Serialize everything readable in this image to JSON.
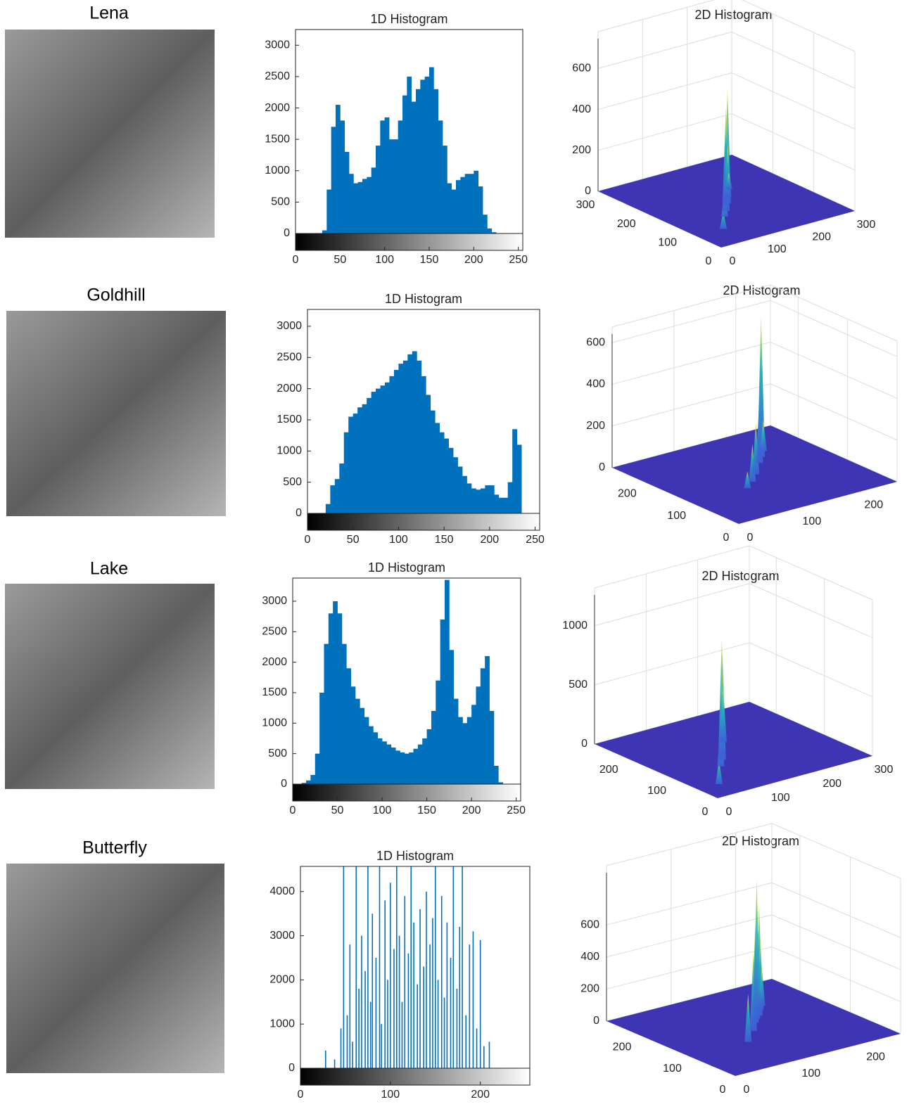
{
  "panels": [
    {
      "label": "Lena"
    },
    {
      "label": "Goldhill"
    },
    {
      "label": "Lake"
    },
    {
      "label": "Butterfly"
    }
  ],
  "chart_data": [
    {
      "type": "histogram",
      "title": "1D Histogram",
      "color": "#0072bd",
      "bins": [
        0,
        5,
        10,
        15,
        20,
        25,
        30,
        35,
        40,
        45,
        50,
        55,
        60,
        65,
        70,
        75,
        80,
        85,
        90,
        95,
        100,
        105,
        110,
        115,
        120,
        125,
        130,
        135,
        140,
        145,
        150,
        155,
        160,
        165,
        170,
        175,
        180,
        185,
        190,
        195,
        200,
        205,
        210,
        215,
        220,
        225,
        230,
        235,
        240,
        245,
        250,
        255
      ],
      "counts": [
        0,
        0,
        0,
        0,
        0,
        0,
        50,
        700,
        1700,
        2050,
        1800,
        1300,
        950,
        800,
        820,
        870,
        900,
        1050,
        1400,
        1800,
        1850,
        1500,
        1500,
        1800,
        2200,
        2500,
        2100,
        2300,
        2450,
        2500,
        2650,
        2300,
        1800,
        1400,
        800,
        700,
        850,
        900,
        950,
        950,
        1000,
        750,
        300,
        80,
        20,
        0,
        0,
        0,
        0,
        0,
        0
      ],
      "xlim": [
        0,
        255
      ],
      "xticks": [
        0,
        50,
        100,
        150,
        200,
        250
      ],
      "ylim": [
        0,
        3250
      ],
      "yticks": [
        0,
        500,
        1000,
        1500,
        2000,
        2500,
        3000
      ]
    },
    {
      "type": "surface3d",
      "title": "2D Histogram",
      "floor_color": "#3d35b4",
      "xlim": [
        0,
        300
      ],
      "xticks": [
        0,
        100,
        200,
        300
      ],
      "ylim": [
        0,
        300
      ],
      "yticks": [
        0,
        100,
        200,
        300
      ],
      "zlim": [
        0,
        780
      ],
      "zticks": [
        0,
        200,
        400,
        600
      ],
      "spikes": [
        {
          "x": 60,
          "y": 60,
          "z": 90
        },
        {
          "x": 100,
          "y": 100,
          "z": 120
        },
        {
          "x": 120,
          "y": 118,
          "z": 300
        },
        {
          "x": 135,
          "y": 135,
          "z": 480
        },
        {
          "x": 145,
          "y": 142,
          "z": 560
        },
        {
          "x": 155,
          "y": 155,
          "z": 420
        },
        {
          "x": 165,
          "y": 163,
          "z": 260
        },
        {
          "x": 190,
          "y": 188,
          "z": 80
        }
      ]
    },
    {
      "type": "histogram",
      "title": "1D Histogram",
      "color": "#0072bd",
      "bins": [
        0,
        5,
        10,
        15,
        20,
        25,
        30,
        35,
        40,
        45,
        50,
        55,
        60,
        65,
        70,
        75,
        80,
        85,
        90,
        95,
        100,
        105,
        110,
        115,
        120,
        125,
        130,
        135,
        140,
        145,
        150,
        155,
        160,
        165,
        170,
        175,
        180,
        185,
        190,
        195,
        200,
        205,
        210,
        215,
        220,
        225,
        230,
        235,
        240,
        245,
        250,
        255
      ],
      "counts": [
        0,
        0,
        0,
        0,
        150,
        450,
        550,
        800,
        1300,
        1550,
        1600,
        1700,
        1750,
        1850,
        1950,
        2000,
        2050,
        2100,
        2200,
        2300,
        2400,
        2450,
        2550,
        2600,
        2450,
        2200,
        1900,
        1650,
        1450,
        1300,
        1200,
        1050,
        900,
        750,
        600,
        480,
        400,
        380,
        400,
        450,
        450,
        300,
        250,
        250,
        500,
        1350,
        1100,
        0,
        0,
        0,
        0
      ],
      "xlim": [
        0,
        255
      ],
      "xticks": [
        0,
        50,
        100,
        150,
        200,
        250
      ],
      "ylim": [
        0,
        3270
      ],
      "yticks": [
        0,
        500,
        1000,
        1500,
        2000,
        2500,
        3000
      ]
    },
    {
      "type": "surface3d",
      "title": "2D Histogram",
      "floor_color": "#3d35b4",
      "xlim": [
        0,
        256
      ],
      "xticks": [
        0,
        100,
        200
      ],
      "ylim": [
        0,
        256
      ],
      "yticks": [
        0,
        100,
        200
      ],
      "zlim": [
        0,
        675
      ],
      "zticks": [
        0,
        200,
        400,
        600
      ],
      "spikes": [
        {
          "x": 90,
          "y": 95,
          "z": 80
        },
        {
          "x": 110,
          "y": 110,
          "z": 180
        },
        {
          "x": 130,
          "y": 128,
          "z": 250
        },
        {
          "x": 160,
          "y": 158,
          "z": 320
        },
        {
          "x": 175,
          "y": 173,
          "z": 600
        },
        {
          "x": 180,
          "y": 180,
          "z": 670
        },
        {
          "x": 190,
          "y": 188,
          "z": 150
        }
      ]
    },
    {
      "type": "histogram",
      "title": "1D Histogram",
      "color": "#0072bd",
      "bins": [
        0,
        5,
        10,
        15,
        20,
        25,
        30,
        35,
        40,
        45,
        50,
        55,
        60,
        65,
        70,
        75,
        80,
        85,
        90,
        95,
        100,
        105,
        110,
        115,
        120,
        125,
        130,
        135,
        140,
        145,
        150,
        155,
        160,
        165,
        170,
        175,
        180,
        185,
        190,
        195,
        200,
        205,
        210,
        215,
        220,
        225,
        230,
        235,
        240,
        245,
        250,
        255
      ],
      "counts": [
        0,
        0,
        20,
        60,
        150,
        500,
        1500,
        2300,
        2800,
        3000,
        2800,
        2300,
        1900,
        1600,
        1400,
        1250,
        1100,
        950,
        850,
        750,
        700,
        650,
        600,
        550,
        520,
        500,
        520,
        580,
        650,
        750,
        900,
        1200,
        1700,
        2700,
        3350,
        2200,
        1400,
        1100,
        1000,
        1100,
        1300,
        1600,
        1900,
        2100,
        1200,
        300,
        30,
        0,
        0,
        0,
        0
      ],
      "xlim": [
        0,
        255
      ],
      "xticks": [
        0,
        50,
        100,
        150,
        200,
        250
      ],
      "ylim": [
        0,
        3380
      ],
      "yticks": [
        0,
        500,
        1000,
        1500,
        2000,
        2500,
        3000
      ]
    },
    {
      "type": "surface3d",
      "title": "2D Histogram",
      "floor_color": "#3d35b4",
      "xlim": [
        0,
        300
      ],
      "xticks": [
        0,
        100,
        200,
        300
      ],
      "ylim": [
        0,
        256
      ],
      "yticks": [
        0,
        100,
        200
      ],
      "zlim": [
        0,
        1320
      ],
      "zticks": [
        0,
        500,
        1000
      ],
      "spikes": [
        {
          "x": 40,
          "y": 40,
          "z": 200
        },
        {
          "x": 90,
          "y": 90,
          "z": 400
        },
        {
          "x": 110,
          "y": 108,
          "z": 900
        },
        {
          "x": 118,
          "y": 118,
          "z": 1000
        },
        {
          "x": 125,
          "y": 125,
          "z": 700
        },
        {
          "x": 160,
          "y": 160,
          "z": 450
        }
      ]
    },
    {
      "type": "spike",
      "title": "1D Histogram",
      "color": "#0072bd",
      "x": [
        28,
        38,
        45,
        48,
        52,
        55,
        58,
        62,
        65,
        68,
        72,
        75,
        78,
        80,
        84,
        88,
        90,
        94,
        97,
        100,
        104,
        107,
        110,
        113,
        116,
        120,
        123,
        126,
        130,
        133,
        137,
        140,
        144,
        147,
        150,
        153,
        157,
        160,
        163,
        167,
        170,
        174,
        177,
        180,
        184,
        188,
        192,
        196,
        200,
        204,
        210
      ],
      "values": [
        400,
        200,
        900,
        4570,
        1200,
        2800,
        600,
        4570,
        1800,
        3000,
        2200,
        4570,
        1500,
        3500,
        2500,
        4570,
        1000,
        3800,
        2000,
        4200,
        2700,
        4570,
        3000,
        1500,
        3900,
        2600,
        4570,
        3300,
        1900,
        3600,
        2300,
        4000,
        2800,
        3400,
        4570,
        2000,
        3900,
        1600,
        3300,
        2500,
        4570,
        1800,
        3200,
        4570,
        1200,
        2800,
        3100,
        900,
        2900,
        500,
        600
      ],
      "xlim": [
        0,
        255
      ],
      "xticks": [
        0,
        100,
        200
      ],
      "ylim": [
        0,
        4570
      ],
      "yticks": [
        0,
        1000,
        2000,
        3000,
        4000
      ]
    },
    {
      "type": "surface3d",
      "title": "2D Histogram",
      "floor_color": "#3d35b4",
      "xlim": [
        0,
        256
      ],
      "xticks": [
        0,
        100,
        200
      ],
      "ylim": [
        0,
        256
      ],
      "yticks": [
        0,
        100,
        200
      ],
      "zlim": [
        0,
        970
      ],
      "zticks": [
        0,
        200,
        400,
        600
      ],
      "spikes": [
        {
          "x": 90,
          "y": 90,
          "z": 300
        },
        {
          "x": 120,
          "y": 118,
          "z": 500
        },
        {
          "x": 140,
          "y": 140,
          "z": 620
        },
        {
          "x": 150,
          "y": 150,
          "z": 880
        },
        {
          "x": 160,
          "y": 158,
          "z": 700
        },
        {
          "x": 175,
          "y": 175,
          "z": 450
        },
        {
          "x": 185,
          "y": 185,
          "z": 250
        }
      ]
    }
  ]
}
